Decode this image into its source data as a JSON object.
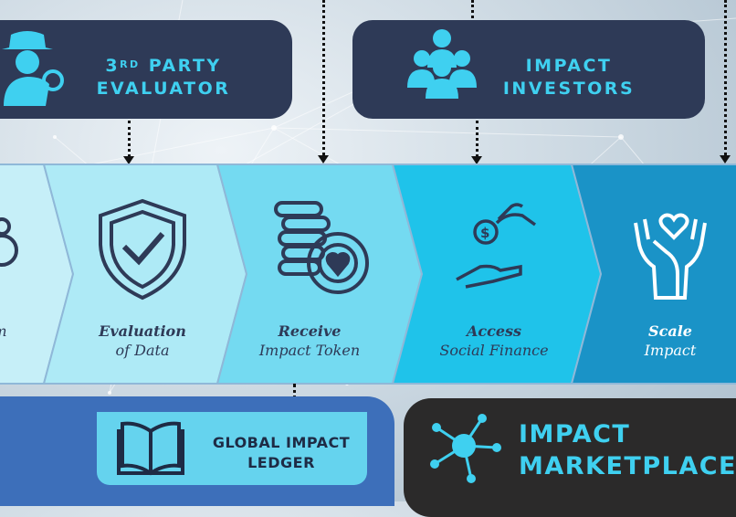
{
  "roles": {
    "evaluator": {
      "label_line1_prefix": "3",
      "label_line1_sup": "RD",
      "label_line1_rest": " PARTY",
      "label_line2": "EVALUATOR"
    },
    "investors": {
      "label_line1": "IMPACT",
      "label_line2": "INVESTORS"
    }
  },
  "steps": [
    {
      "line1": "",
      "line2": "m",
      "icon": "gears-icon"
    },
    {
      "line1": "Evaluation",
      "line2": "of Data",
      "icon": "shield-check-icon"
    },
    {
      "line1": "Receive",
      "line2": "Impact Token",
      "icon": "coin-stack-heart-icon"
    },
    {
      "line1": "Access",
      "line2": "Social Finance",
      "icon": "hand-coin-icon"
    },
    {
      "line1": "Scale",
      "line2": "Impact",
      "icon": "hands-heart-icon"
    }
  ],
  "ledger": {
    "line1": "GLOBAL IMPACT",
    "line2": "LEDGER",
    "icon": "open-book-icon"
  },
  "marketplace": {
    "line1": "IMPACT",
    "line2": "MARKETPLACE",
    "icon": "network-hub-icon"
  },
  "colors": {
    "navy": "#2e3a57",
    "cyan_text": "#3fd0f0",
    "ledger_blue": "#3d6fba",
    "market_dark": "#2b2a2a",
    "step_fills": [
      "#c6eff8",
      "#aeeaf6",
      "#74daf1",
      "#1fc3ea",
      "#1a93c7"
    ]
  }
}
